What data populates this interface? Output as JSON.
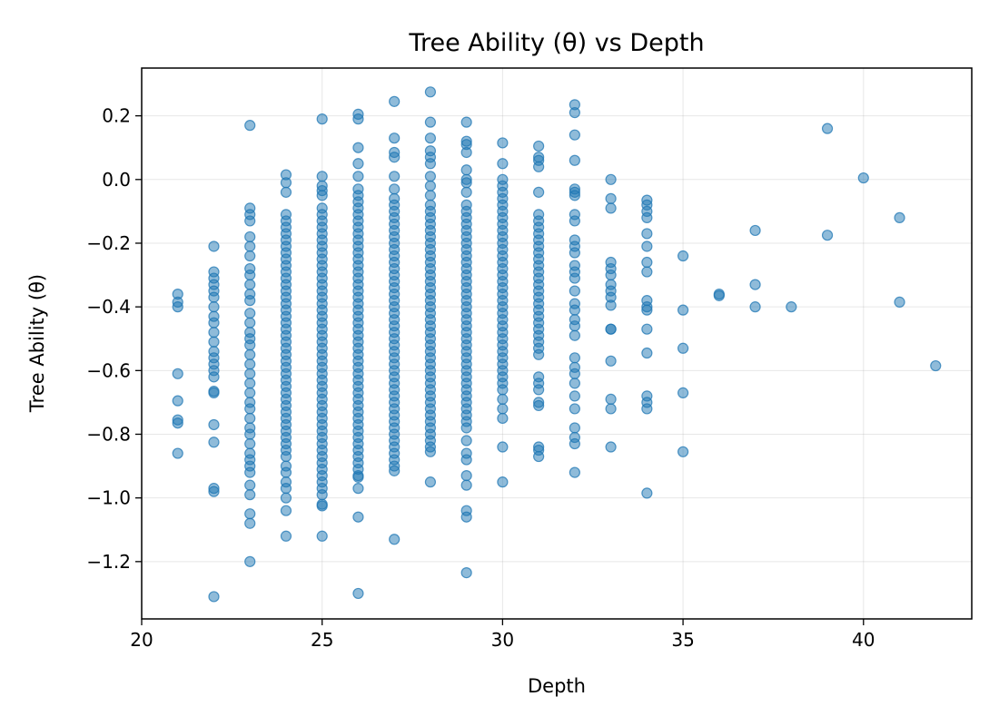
{
  "chart_data": {
    "type": "scatter",
    "title": "Tree Ability (θ) vs Depth",
    "xlabel": "Depth",
    "ylabel": "Tree Ability (θ)",
    "xlim": [
      20,
      43
    ],
    "ylim": [
      -1.38,
      0.35
    ],
    "xticks": [
      20,
      25,
      30,
      35,
      40
    ],
    "xtick_labels": [
      "20",
      "25",
      "30",
      "35",
      "40"
    ],
    "yticks": [
      0.2,
      0.0,
      -0.2,
      -0.4,
      -0.6,
      -0.8,
      -1.0,
      -1.2
    ],
    "ytick_labels": [
      "0.2",
      "0.0",
      "−0.2",
      "−0.4",
      "−0.6",
      "−0.8",
      "−1.0",
      "−1.2"
    ],
    "grid": true,
    "color": "#1f77b4",
    "points": [
      {
        "depth": 21,
        "values": [
          -0.36,
          -0.385,
          -0.4,
          -0.61,
          -0.695,
          -0.755,
          -0.765,
          -0.86
        ]
      },
      {
        "depth": 22,
        "values": [
          -0.21,
          -0.29,
          -0.31,
          -0.33,
          -0.35,
          -0.37,
          -0.4,
          -0.43,
          -0.45,
          -0.48,
          -0.51,
          -0.54,
          -0.56,
          -0.58,
          -0.6,
          -0.62,
          -0.665,
          -0.67,
          -0.77,
          -0.825,
          -0.97,
          -0.98,
          -1.31
        ]
      },
      {
        "depth": 23,
        "values": [
          0.17,
          -0.09,
          -0.11,
          -0.13,
          -0.18,
          -0.21,
          -0.24,
          -0.28,
          -0.3,
          -0.33,
          -0.36,
          -0.38,
          -0.42,
          -0.45,
          -0.48,
          -0.5,
          -0.52,
          -0.55,
          -0.58,
          -0.61,
          -0.64,
          -0.67,
          -0.7,
          -0.72,
          -0.75,
          -0.78,
          -0.8,
          -0.83,
          -0.86,
          -0.88,
          -0.9,
          -0.92,
          -0.96,
          -0.99,
          -1.05,
          -1.08,
          -1.2
        ]
      },
      {
        "depth": 24,
        "values": [
          0.015,
          -0.01,
          -0.04,
          -0.11,
          -0.13,
          -0.15,
          -0.17,
          -0.19,
          -0.21,
          -0.23,
          -0.25,
          -0.27,
          -0.29,
          -0.31,
          -0.33,
          -0.35,
          -0.37,
          -0.39,
          -0.41,
          -0.43,
          -0.45,
          -0.47,
          -0.49,
          -0.51,
          -0.53,
          -0.55,
          -0.57,
          -0.59,
          -0.61,
          -0.63,
          -0.65,
          -0.67,
          -0.69,
          -0.71,
          -0.73,
          -0.75,
          -0.77,
          -0.79,
          -0.81,
          -0.83,
          -0.85,
          -0.87,
          -0.9,
          -0.92,
          -0.95,
          -0.97,
          -1.0,
          -1.04,
          -1.12
        ]
      },
      {
        "depth": 25,
        "values": [
          0.19,
          0.01,
          -0.02,
          -0.035,
          -0.05,
          -0.09,
          -0.11,
          -0.13,
          -0.15,
          -0.17,
          -0.19,
          -0.21,
          -0.23,
          -0.25,
          -0.27,
          -0.29,
          -0.31,
          -0.33,
          -0.35,
          -0.37,
          -0.39,
          -0.41,
          -0.43,
          -0.45,
          -0.47,
          -0.49,
          -0.51,
          -0.53,
          -0.55,
          -0.57,
          -0.59,
          -0.61,
          -0.63,
          -0.65,
          -0.67,
          -0.69,
          -0.71,
          -0.73,
          -0.75,
          -0.77,
          -0.79,
          -0.81,
          -0.83,
          -0.85,
          -0.87,
          -0.89,
          -0.91,
          -0.93,
          -0.95,
          -0.97,
          -0.99,
          -1.02,
          -1.025,
          -1.12
        ]
      },
      {
        "depth": 26,
        "values": [
          0.205,
          0.19,
          0.1,
          0.05,
          0.01,
          -0.03,
          -0.05,
          -0.07,
          -0.09,
          -0.11,
          -0.13,
          -0.15,
          -0.17,
          -0.19,
          -0.21,
          -0.23,
          -0.25,
          -0.27,
          -0.29,
          -0.31,
          -0.33,
          -0.35,
          -0.37,
          -0.39,
          -0.41,
          -0.43,
          -0.45,
          -0.47,
          -0.49,
          -0.51,
          -0.53,
          -0.55,
          -0.57,
          -0.59,
          -0.61,
          -0.63,
          -0.65,
          -0.67,
          -0.69,
          -0.71,
          -0.73,
          -0.75,
          -0.77,
          -0.79,
          -0.81,
          -0.83,
          -0.85,
          -0.87,
          -0.89,
          -0.91,
          -0.93,
          -0.935,
          -0.97,
          -1.06,
          -1.3
        ]
      },
      {
        "depth": 27,
        "values": [
          0.245,
          0.13,
          0.085,
          0.07,
          0.01,
          -0.03,
          -0.06,
          -0.08,
          -0.1,
          -0.12,
          -0.14,
          -0.16,
          -0.18,
          -0.2,
          -0.22,
          -0.24,
          -0.26,
          -0.28,
          -0.3,
          -0.32,
          -0.34,
          -0.36,
          -0.38,
          -0.4,
          -0.42,
          -0.44,
          -0.46,
          -0.48,
          -0.5,
          -0.52,
          -0.54,
          -0.56,
          -0.58,
          -0.6,
          -0.62,
          -0.64,
          -0.66,
          -0.68,
          -0.7,
          -0.72,
          -0.74,
          -0.76,
          -0.78,
          -0.8,
          -0.82,
          -0.84,
          -0.86,
          -0.88,
          -0.9,
          -0.915,
          -1.13
        ]
      },
      {
        "depth": 28,
        "values": [
          0.275,
          0.18,
          0.13,
          0.09,
          0.07,
          0.05,
          0.01,
          -0.02,
          -0.05,
          -0.08,
          -0.1,
          -0.12,
          -0.14,
          -0.16,
          -0.18,
          -0.2,
          -0.22,
          -0.24,
          -0.26,
          -0.28,
          -0.3,
          -0.32,
          -0.34,
          -0.36,
          -0.38,
          -0.4,
          -0.42,
          -0.44,
          -0.46,
          -0.48,
          -0.5,
          -0.52,
          -0.54,
          -0.56,
          -0.58,
          -0.6,
          -0.62,
          -0.64,
          -0.66,
          -0.68,
          -0.7,
          -0.72,
          -0.74,
          -0.76,
          -0.78,
          -0.8,
          -0.82,
          -0.84,
          -0.855,
          -0.95
        ]
      },
      {
        "depth": 29,
        "values": [
          0.18,
          0.12,
          0.11,
          0.085,
          0.03,
          0.0,
          -0.01,
          -0.04,
          -0.08,
          -0.1,
          -0.12,
          -0.14,
          -0.16,
          -0.18,
          -0.2,
          -0.22,
          -0.24,
          -0.26,
          -0.28,
          -0.3,
          -0.32,
          -0.34,
          -0.36,
          -0.38,
          -0.4,
          -0.42,
          -0.44,
          -0.46,
          -0.48,
          -0.5,
          -0.52,
          -0.54,
          -0.56,
          -0.58,
          -0.6,
          -0.62,
          -0.64,
          -0.66,
          -0.68,
          -0.7,
          -0.72,
          -0.74,
          -0.76,
          -0.78,
          -0.82,
          -0.86,
          -0.88,
          -0.93,
          -0.96,
          -1.04,
          -1.06,
          -1.235
        ]
      },
      {
        "depth": 30,
        "values": [
          0.115,
          0.05,
          0.0,
          -0.02,
          -0.04,
          -0.06,
          -0.08,
          -0.1,
          -0.12,
          -0.14,
          -0.16,
          -0.18,
          -0.2,
          -0.22,
          -0.24,
          -0.26,
          -0.28,
          -0.3,
          -0.32,
          -0.34,
          -0.36,
          -0.38,
          -0.4,
          -0.42,
          -0.44,
          -0.46,
          -0.48,
          -0.5,
          -0.52,
          -0.54,
          -0.56,
          -0.58,
          -0.6,
          -0.62,
          -0.64,
          -0.66,
          -0.69,
          -0.72,
          -0.75,
          -0.84,
          -0.95
        ]
      },
      {
        "depth": 31,
        "values": [
          0.105,
          0.07,
          0.06,
          0.04,
          -0.04,
          -0.11,
          -0.13,
          -0.15,
          -0.17,
          -0.19,
          -0.21,
          -0.23,
          -0.25,
          -0.27,
          -0.29,
          -0.31,
          -0.33,
          -0.35,
          -0.37,
          -0.39,
          -0.41,
          -0.43,
          -0.45,
          -0.47,
          -0.49,
          -0.51,
          -0.53,
          -0.55,
          -0.62,
          -0.64,
          -0.66,
          -0.7,
          -0.71,
          -0.84,
          -0.85,
          -0.87
        ]
      },
      {
        "depth": 32,
        "values": [
          0.235,
          0.21,
          0.14,
          0.06,
          -0.03,
          -0.04,
          -0.05,
          -0.11,
          -0.13,
          -0.19,
          -0.21,
          -0.23,
          -0.27,
          -0.29,
          -0.31,
          -0.35,
          -0.39,
          -0.41,
          -0.44,
          -0.46,
          -0.49,
          -0.56,
          -0.59,
          -0.61,
          -0.64,
          -0.68,
          -0.72,
          -0.78,
          -0.81,
          -0.83,
          -0.92
        ]
      },
      {
        "depth": 33,
        "values": [
          0.0,
          -0.06,
          -0.09,
          -0.26,
          -0.28,
          -0.3,
          -0.33,
          -0.35,
          -0.37,
          -0.395,
          -0.47,
          -0.47,
          -0.57,
          -0.69,
          -0.72,
          -0.84
        ]
      },
      {
        "depth": 34,
        "values": [
          -0.065,
          -0.08,
          -0.1,
          -0.12,
          -0.17,
          -0.21,
          -0.26,
          -0.29,
          -0.38,
          -0.4,
          -0.41,
          -0.47,
          -0.545,
          -0.68,
          -0.7,
          -0.72,
          -0.985
        ]
      },
      {
        "depth": 35,
        "values": [
          -0.24,
          -0.41,
          -0.53,
          -0.67,
          -0.855
        ]
      },
      {
        "depth": 36,
        "values": [
          -0.36,
          -0.365
        ]
      },
      {
        "depth": 37,
        "values": [
          -0.16,
          -0.33,
          -0.4
        ]
      },
      {
        "depth": 38,
        "values": [
          -0.4
        ]
      },
      {
        "depth": 39,
        "values": [
          0.16,
          -0.175
        ]
      },
      {
        "depth": 40,
        "values": [
          0.005
        ]
      },
      {
        "depth": 41,
        "values": [
          -0.12,
          -0.385
        ]
      },
      {
        "depth": 42,
        "values": [
          -0.585
        ]
      }
    ]
  }
}
